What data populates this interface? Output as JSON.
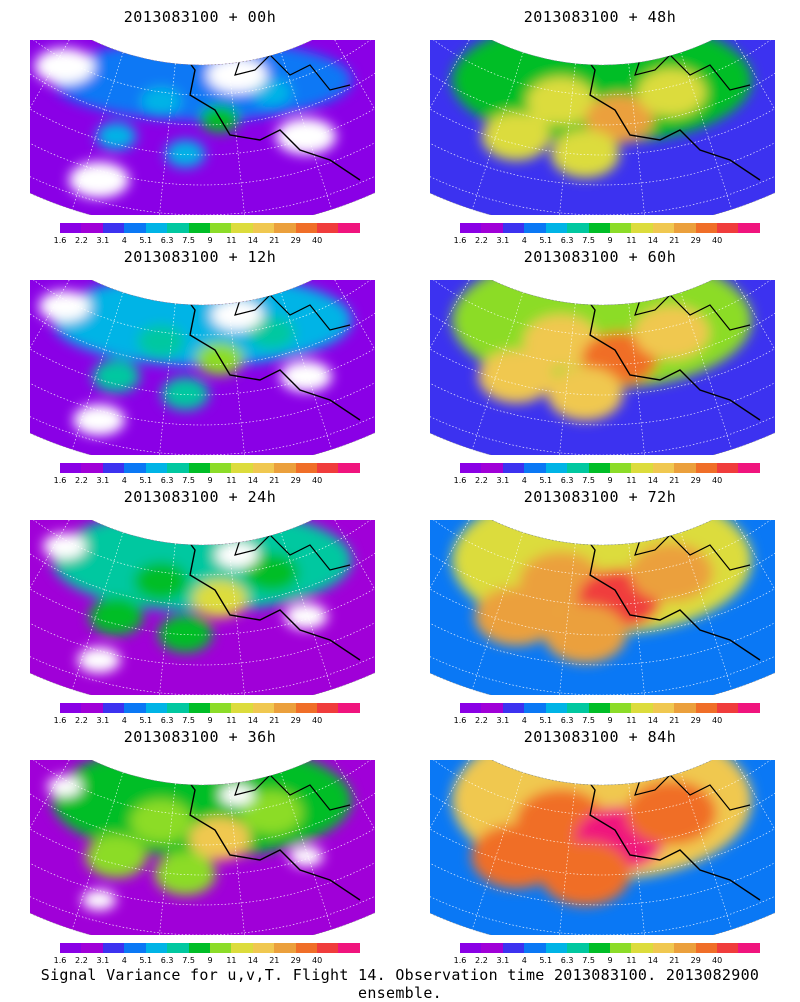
{
  "panels": [
    {
      "title": "2013083100 + 00h",
      "hours": 0
    },
    {
      "title": "2013083100 + 48h",
      "hours": 48
    },
    {
      "title": "2013083100 + 12h",
      "hours": 12
    },
    {
      "title": "2013083100 + 60h",
      "hours": 60
    },
    {
      "title": "2013083100 + 24h",
      "hours": 24
    },
    {
      "title": "2013083100 + 72h",
      "hours": 72
    },
    {
      "title": "2013083100 + 36h",
      "hours": 36
    },
    {
      "title": "2013083100 + 84h",
      "hours": 84
    }
  ],
  "colorbar": {
    "colors": [
      "#8a00e6",
      "#a000d8",
      "#3c32f0",
      "#0a78f5",
      "#00b4e6",
      "#00c8a0",
      "#00be28",
      "#8cdc28",
      "#dcdc3c",
      "#f0c850",
      "#eba03c",
      "#f06e28",
      "#f03c3c",
      "#f0147d"
    ],
    "labels": [
      "1.6",
      "2.2",
      "3.1",
      "4",
      "5.1",
      "6.3",
      "7.5",
      "9",
      "11",
      "14",
      "21",
      "29",
      "40"
    ]
  },
  "caption": "Signal Variance for u,v,T. Flight 14. Observation time 2013083100. 2013082900 ensemble."
}
